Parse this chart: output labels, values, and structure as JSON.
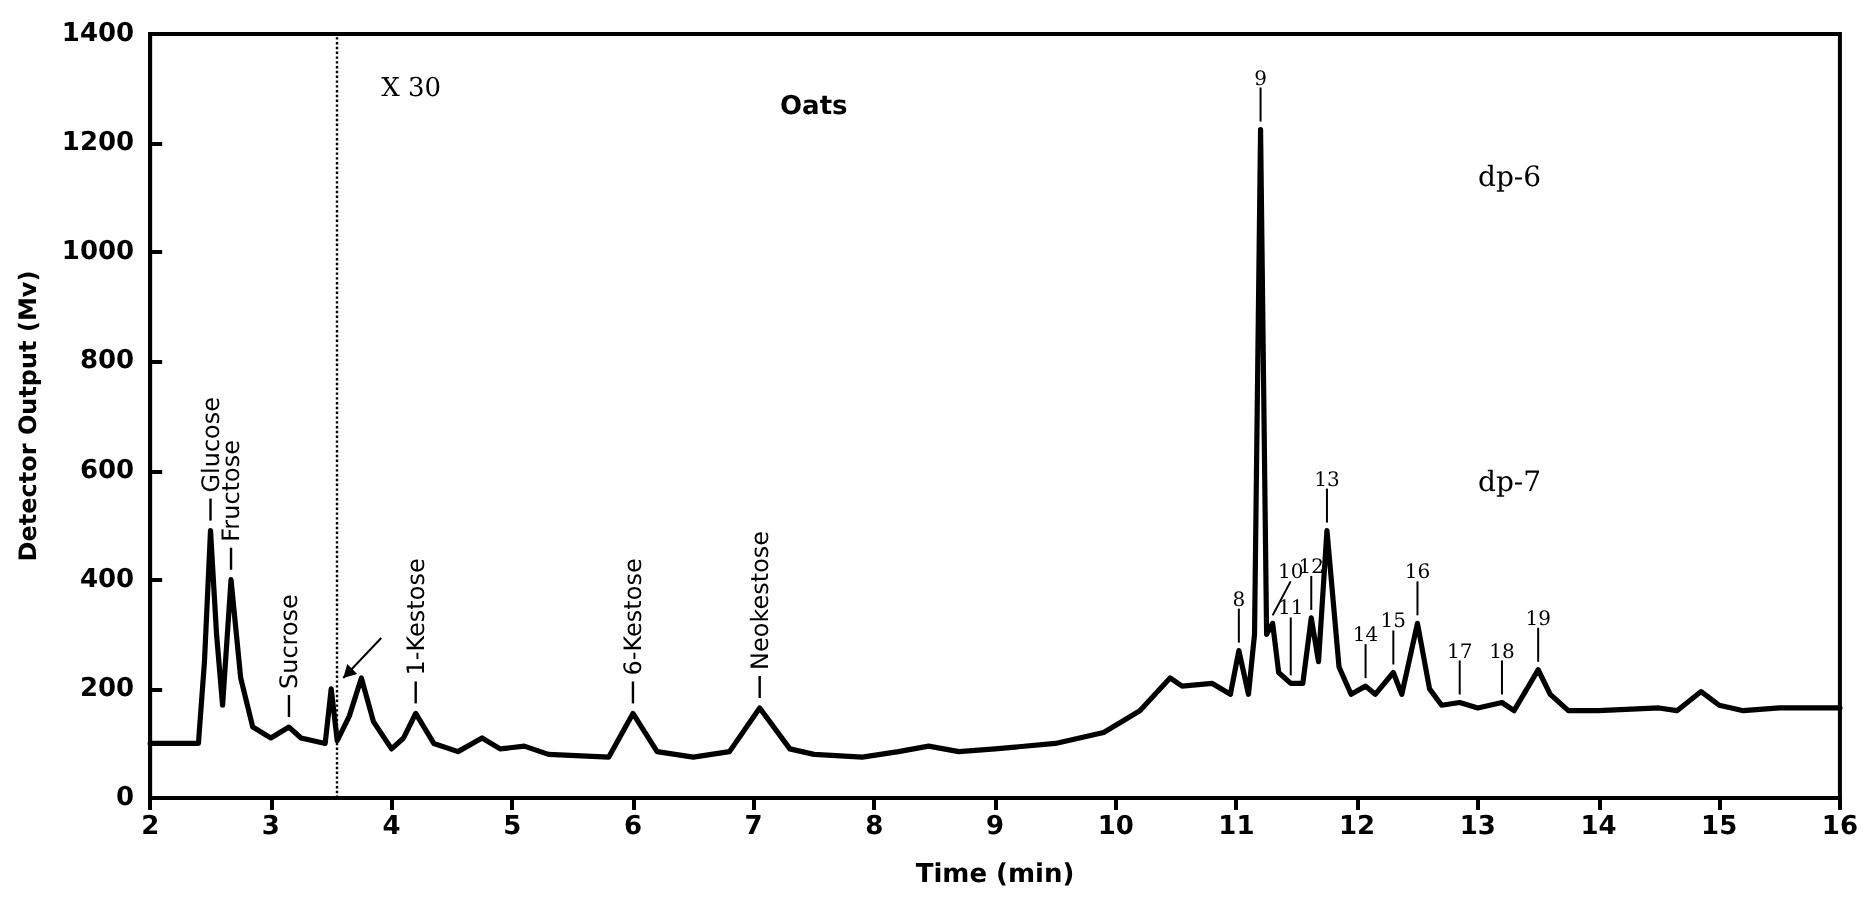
{
  "chart_data": {
    "type": "line",
    "title": "Oats",
    "xlabel": "Time (min)",
    "ylabel": "Detector Output (Mv)",
    "xlim": [
      2,
      16
    ],
    "xticks": [
      2,
      3,
      4,
      5,
      6,
      7,
      8,
      9,
      10,
      11,
      12,
      13,
      14,
      15,
      16
    ],
    "ylim": [
      0,
      1400
    ],
    "yticks": [
      0,
      200,
      400,
      600,
      800,
      1000,
      1200,
      1400
    ],
    "grid": false,
    "marker": "none",
    "line_style": "solid",
    "series": [
      {
        "color": "#000000",
        "x": [
          2.0,
          2.4,
          2.45,
          2.5,
          2.55,
          2.6,
          2.67,
          2.75,
          2.85,
          3.0,
          3.15,
          3.25,
          3.45,
          3.5,
          3.55,
          3.65,
          3.75,
          3.85,
          4.0,
          4.1,
          4.2,
          4.35,
          4.55,
          4.75,
          4.9,
          5.1,
          5.3,
          5.8,
          6.0,
          6.2,
          6.5,
          6.8,
          7.05,
          7.3,
          7.5,
          7.9,
          8.2,
          8.45,
          8.7,
          9.0,
          9.5,
          9.9,
          10.2,
          10.45,
          10.55,
          10.8,
          10.95,
          11.02,
          11.1,
          11.15,
          11.2,
          11.25,
          11.3,
          11.35,
          11.45,
          11.55,
          11.62,
          11.68,
          11.75,
          11.85,
          11.95,
          12.07,
          12.15,
          12.3,
          12.37,
          12.5,
          12.6,
          12.7,
          12.85,
          13.0,
          13.2,
          13.3,
          13.5,
          13.6,
          13.75,
          14.0,
          14.5,
          14.65,
          14.85,
          15.0,
          15.2,
          15.5,
          16.0
        ],
        "values": [
          100,
          100,
          250,
          490,
          300,
          170,
          400,
          220,
          130,
          110,
          130,
          110,
          100,
          200,
          105,
          150,
          220,
          140,
          90,
          110,
          155,
          100,
          85,
          110,
          90,
          95,
          80,
          75,
          155,
          85,
          75,
          85,
          165,
          90,
          80,
          75,
          85,
          95,
          85,
          90,
          100,
          120,
          160,
          220,
          205,
          210,
          190,
          270,
          190,
          300,
          1225,
          300,
          320,
          230,
          210,
          210,
          330,
          250,
          490,
          240,
          190,
          205,
          190,
          230,
          190,
          320,
          200,
          170,
          175,
          165,
          175,
          160,
          235,
          190,
          160,
          160,
          165,
          160,
          195,
          170,
          160,
          165,
          165
        ]
      }
    ],
    "ref_lines": [
      {
        "axis": "x",
        "value": 3.55,
        "label": "X 30",
        "line_style": "dotted",
        "color": "#000000"
      }
    ],
    "annotations": [
      {
        "text": "Glucose",
        "x": 2.5,
        "y": 490
      },
      {
        "text": "Fructose",
        "x": 2.67,
        "y": 400
      },
      {
        "text": "Sucrose",
        "x": 3.15,
        "y": 130
      },
      {
        "text": "1-Kestose",
        "x": 4.2,
        "y": 155
      },
      {
        "text": "6-Kestose",
        "x": 6.0,
        "y": 155
      },
      {
        "text": "Neokestose",
        "x": 7.05,
        "y": 165
      },
      {
        "text": "8",
        "x": 11.02,
        "y": 270
      },
      {
        "text": "9",
        "x": 11.2,
        "y": 1225
      },
      {
        "text": "10",
        "x": 11.3,
        "y": 320
      },
      {
        "text": "11",
        "x": 11.45,
        "y": 210
      },
      {
        "text": "12",
        "x": 11.62,
        "y": 330
      },
      {
        "text": "13",
        "x": 11.75,
        "y": 490
      },
      {
        "text": "14",
        "x": 12.07,
        "y": 205
      },
      {
        "text": "15",
        "x": 12.3,
        "y": 230
      },
      {
        "text": "16",
        "x": 12.5,
        "y": 320
      },
      {
        "text": "17",
        "x": 12.85,
        "y": 175
      },
      {
        "text": "18",
        "x": 13.2,
        "y": 175
      },
      {
        "text": "19",
        "x": 13.5,
        "y": 235
      },
      "dp-6",
      "dp-7"
    ]
  }
}
